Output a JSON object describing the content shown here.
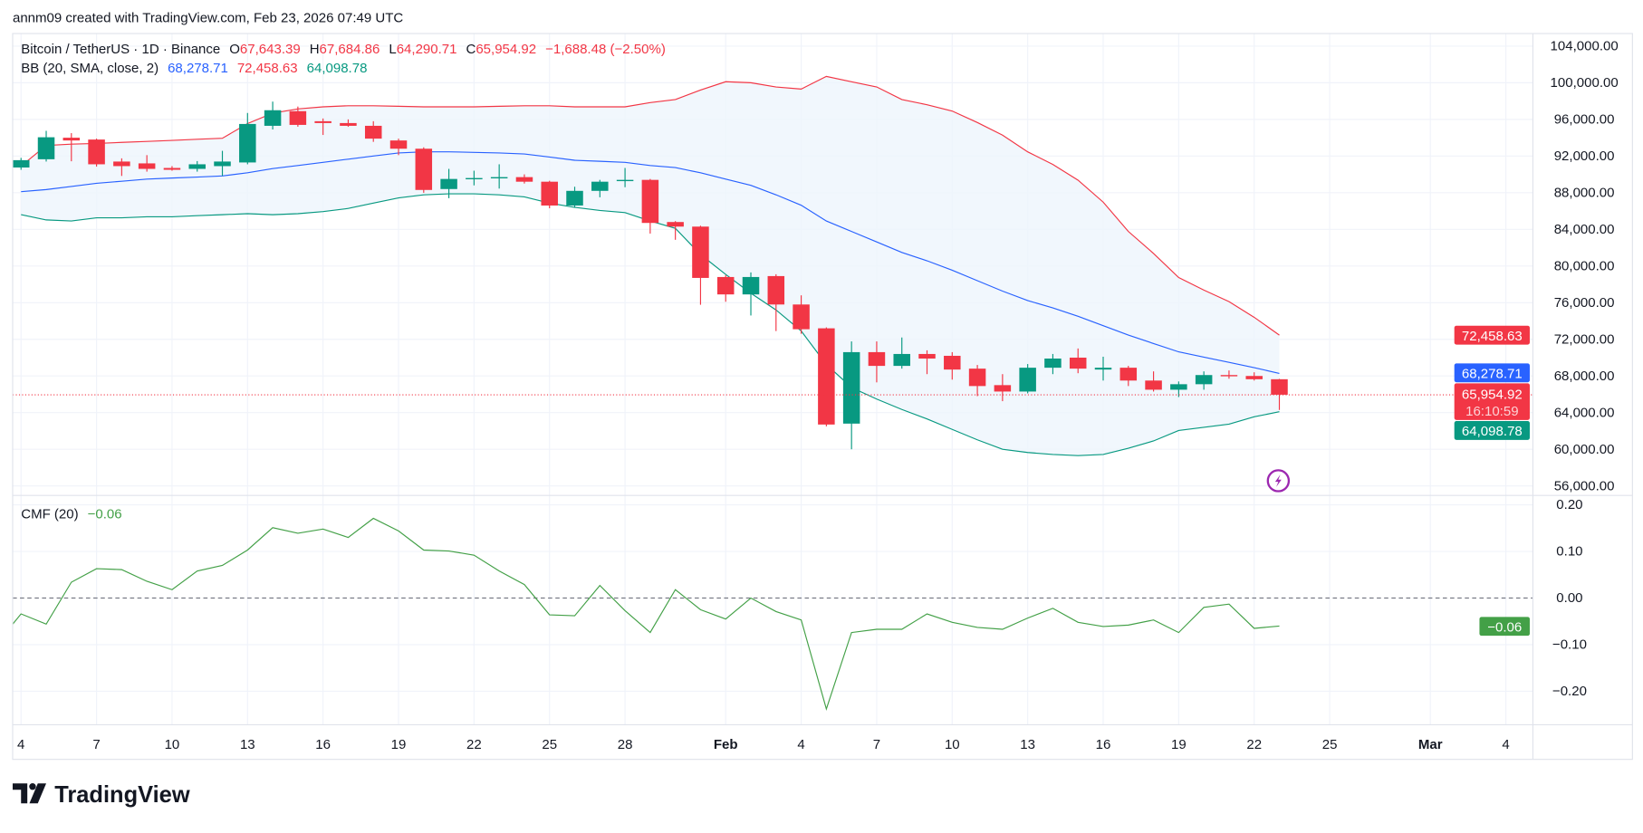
{
  "caption": "annm09 created with TradingView.com, Feb 23, 2026 07:49 UTC",
  "legend": {
    "symbol": "Bitcoin / TetherUS · 1D · Binance",
    "o_label": "O",
    "o": "67,643.39",
    "h_label": "H",
    "h": "67,684.86",
    "l_label": "L",
    "l": "64,290.71",
    "c_label": "C",
    "c": "65,954.92",
    "change": "−1,688.48 (−2.50%)",
    "bb_label": "BB (20, SMA, close, 2)",
    "bb_basis": "68,278.71",
    "bb_upper": "72,458.63",
    "bb_lower": "64,098.78",
    "cmf_label": "CMF (20)",
    "cmf_value": "−0.06"
  },
  "badges": {
    "upper": "72,458.63",
    "basis": "68,278.71",
    "last": "65,954.92",
    "countdown": "16:10:59",
    "lower": "64,098.78",
    "cmf": "−0.06"
  },
  "logo": "TradingView",
  "colors": {
    "up": "#089981",
    "down": "#f23645",
    "basis": "#2962ff",
    "upper": "#f23645",
    "lower": "#089981",
    "band_fill": "#eef5fd",
    "cmf": "#43a047",
    "alert": "#9c27b0"
  },
  "icons": {
    "alert": "lightning-icon",
    "logo": "tradingview-logo"
  },
  "chart_data": [
    {
      "type": "candlestick",
      "price_axis": {
        "ticks": [
          "104,000.00",
          "100,000.00",
          "96,000.00",
          "92,000.00",
          "88,000.00",
          "84,000.00",
          "80,000.00",
          "76,000.00",
          "72,000.00",
          "68,000.00",
          "64,000.00",
          "60,000.00",
          "56,000.00"
        ],
        "ylim": [
          54500,
          105000
        ]
      },
      "time_axis": {
        "ticks": [
          [
            "4",
            "2026-01-04"
          ],
          [
            "7",
            "2026-01-07"
          ],
          [
            "10",
            "2026-01-10"
          ],
          [
            "13",
            "2026-01-13"
          ],
          [
            "16",
            "2026-01-16"
          ],
          [
            "19",
            "2026-01-19"
          ],
          [
            "22",
            "2026-01-22"
          ],
          [
            "25",
            "2026-01-25"
          ],
          [
            "28",
            "2026-01-28"
          ],
          [
            "Feb",
            "2026-02-01"
          ],
          [
            "4",
            "2026-02-04"
          ],
          [
            "7",
            "2026-02-07"
          ],
          [
            "10",
            "2026-02-10"
          ],
          [
            "13",
            "2026-02-13"
          ],
          [
            "16",
            "2026-02-16"
          ],
          [
            "19",
            "2026-02-19"
          ],
          [
            "22",
            "2026-02-22"
          ],
          [
            "25",
            "2026-02-25"
          ],
          [
            "Mar",
            "2026-03-01"
          ],
          [
            "4",
            "2026-03-04"
          ]
        ]
      },
      "grid": true,
      "start_date": "2026-01-04",
      "ohlc": [
        [
          "2026-01-04",
          90750,
          91800,
          90500,
          91550
        ],
        [
          "2026-01-05",
          91650,
          94750,
          91400,
          94050
        ],
        [
          "2026-01-06",
          94000,
          94500,
          91430,
          93700
        ],
        [
          "2026-01-07",
          93800,
          93900,
          90850,
          91100
        ],
        [
          "2026-01-08",
          91400,
          91750,
          89830,
          90900
        ],
        [
          "2026-01-09",
          91200,
          92100,
          90300,
          90600
        ],
        [
          "2026-01-10",
          90700,
          90900,
          90400,
          90500
        ],
        [
          "2026-01-11",
          90600,
          91450,
          90300,
          91100
        ],
        [
          "2026-01-12",
          90900,
          92570,
          89830,
          91400
        ],
        [
          "2026-01-13",
          91300,
          96700,
          91100,
          95500
        ],
        [
          "2026-01-14",
          95300,
          97940,
          94900,
          97000
        ],
        [
          "2026-01-15",
          96900,
          97400,
          95200,
          95400
        ],
        [
          "2026-01-16",
          95800,
          96100,
          94300,
          95600
        ],
        [
          "2026-01-17",
          95600,
          96000,
          95200,
          95300
        ],
        [
          "2026-01-18",
          95300,
          95800,
          93550,
          93900
        ],
        [
          "2026-01-19",
          93700,
          93900,
          92100,
          92800
        ],
        [
          "2026-01-20",
          92800,
          92950,
          87990,
          88300
        ],
        [
          "2026-01-21",
          88400,
          90600,
          87400,
          89500
        ],
        [
          "2026-01-22",
          89500,
          90400,
          88800,
          89600
        ],
        [
          "2026-01-23",
          89600,
          91100,
          88450,
          89700
        ],
        [
          "2026-01-24",
          89700,
          90000,
          89000,
          89200
        ],
        [
          "2026-01-25",
          89200,
          89300,
          86300,
          86600
        ],
        [
          "2026-01-26",
          86600,
          88650,
          86400,
          88200
        ],
        [
          "2026-01-27",
          88200,
          89400,
          87500,
          89200
        ],
        [
          "2026-01-28",
          89300,
          90700,
          88600,
          89400
        ],
        [
          "2026-01-29",
          89400,
          89500,
          83540,
          84700
        ],
        [
          "2026-01-30",
          84800,
          84900,
          82860,
          84300
        ],
        [
          "2026-01-31",
          84300,
          84400,
          75770,
          78700
        ],
        [
          "2026-02-01",
          78800,
          79000,
          76100,
          76900
        ],
        [
          "2026-02-02",
          76900,
          79300,
          74600,
          78800
        ],
        [
          "2026-02-03",
          78900,
          79100,
          72900,
          75800
        ],
        [
          "2026-02-04",
          75800,
          76800,
          72600,
          73100
        ],
        [
          "2026-02-05",
          73200,
          73300,
          62500,
          62700
        ],
        [
          "2026-02-06",
          62800,
          71770,
          60000,
          70600
        ],
        [
          "2026-02-07",
          70600,
          71770,
          67300,
          69100
        ],
        [
          "2026-02-08",
          69100,
          72200,
          68800,
          70400
        ],
        [
          "2026-02-09",
          70400,
          70800,
          68200,
          69900
        ],
        [
          "2026-02-10",
          70200,
          70600,
          67600,
          68700
        ],
        [
          "2026-02-11",
          68800,
          69200,
          65800,
          66900
        ],
        [
          "2026-02-12",
          67000,
          68200,
          65250,
          66300
        ],
        [
          "2026-02-13",
          66300,
          69300,
          66100,
          68900
        ],
        [
          "2026-02-14",
          68900,
          70400,
          68200,
          69900
        ],
        [
          "2026-02-15",
          70000,
          71000,
          68300,
          68800
        ],
        [
          "2026-02-16",
          68700,
          70100,
          67500,
          68900
        ],
        [
          "2026-02-17",
          68900,
          69100,
          66900,
          67500
        ],
        [
          "2026-02-18",
          67500,
          68500,
          66300,
          66500
        ],
        [
          "2026-02-19",
          66500,
          67400,
          65700,
          67100
        ],
        [
          "2026-02-20",
          67100,
          68500,
          66500,
          68100
        ],
        [
          "2026-02-21",
          68100,
          68600,
          67700,
          68000
        ],
        [
          "2026-02-22",
          68000,
          68400,
          67500,
          67643.39
        ],
        [
          "2026-02-23",
          67643.39,
          67684.86,
          64290.71,
          65954.92
        ]
      ],
      "bollinger": {
        "upper": [
          90900,
          93150,
          93300,
          93370,
          93490,
          93600,
          93710,
          93830,
          93940,
          95540,
          96680,
          97140,
          97370,
          97490,
          97490,
          97430,
          97370,
          97370,
          97370,
          97430,
          97490,
          97490,
          97370,
          97370,
          97370,
          97830,
          98170,
          99200,
          100110,
          100000,
          99540,
          99310,
          100690,
          100110,
          99540,
          98170,
          97600,
          96910,
          95660,
          94280,
          92460,
          91080,
          89370,
          86970,
          83770,
          81370,
          78740,
          77370,
          76110,
          74400,
          72458.63
        ],
        "basis": [
          88110,
          88340,
          88680,
          89030,
          89250,
          89480,
          89600,
          89710,
          89830,
          90170,
          90630,
          90970,
          91310,
          91660,
          92000,
          92340,
          92460,
          92460,
          92400,
          92340,
          92230,
          91890,
          91540,
          91430,
          91310,
          90970,
          90740,
          90170,
          89480,
          88800,
          87770,
          86630,
          84910,
          83770,
          82630,
          81480,
          80570,
          79540,
          78400,
          77260,
          76230,
          75430,
          74510,
          73490,
          72460,
          71540,
          70630,
          70060,
          69490,
          68910,
          68278.71
        ],
        "lower": [
          85600,
          85030,
          84910,
          85260,
          85260,
          85370,
          85370,
          85490,
          85600,
          85710,
          85600,
          85710,
          85940,
          86280,
          86860,
          87430,
          87770,
          87880,
          87880,
          87770,
          87540,
          86860,
          86400,
          86060,
          85830,
          84910,
          84110,
          81250,
          79080,
          77030,
          75200,
          72910,
          69250,
          66740,
          65480,
          64340,
          63310,
          62170,
          61030,
          60000,
          59650,
          59430,
          59310,
          59430,
          60110,
          60910,
          62050,
          62400,
          62740,
          63540,
          64098.78
        ]
      },
      "last_price": 65954.92
    },
    {
      "type": "line",
      "name": "CMF (20)",
      "y_axis": {
        "ticks": [
          "0.20",
          "0.10",
          "0.00",
          "−0.10",
          "−0.20"
        ],
        "ylim": [
          -0.27,
          0.24
        ]
      },
      "zero_line": true,
      "values": [
        -0.034,
        -0.056,
        0.034,
        0.063,
        0.061,
        0.036,
        0.018,
        0.058,
        0.07,
        0.103,
        0.151,
        0.139,
        0.148,
        0.13,
        0.171,
        0.144,
        0.103,
        0.101,
        0.092,
        0.058,
        0.029,
        -0.036,
        -0.038,
        0.027,
        -0.027,
        -0.074,
        0.018,
        -0.025,
        -0.045,
        0.0,
        -0.029,
        -0.047,
        -0.238,
        -0.074,
        -0.067,
        -0.067,
        -0.034,
        -0.052,
        -0.063,
        -0.067,
        -0.043,
        -0.022,
        -0.052,
        -0.061,
        -0.058,
        -0.047,
        -0.074,
        -0.02,
        -0.013,
        -0.065,
        -0.06
      ]
    }
  ]
}
